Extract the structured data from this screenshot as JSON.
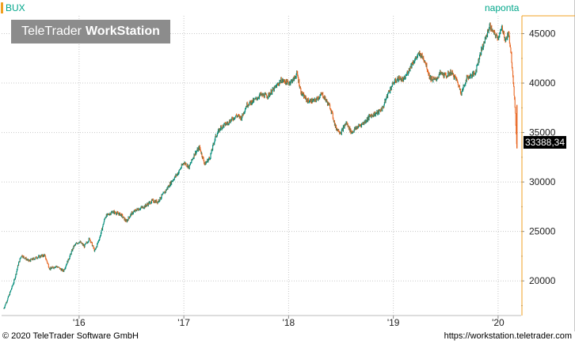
{
  "header": {
    "symbol": "BUX",
    "period": "naponta",
    "logo_part1": "TeleTrader",
    "logo_part2": "WorkStation"
  },
  "footer": {
    "copyright": "© 2020 TeleTrader Software GmbH",
    "url": "https://workstation.teletrader.com"
  },
  "colors": {
    "up": "#008c7a",
    "down": "#e8641e",
    "accent": "#f0a020",
    "grid": "#c8c8c8"
  },
  "chart_data": {
    "type": "candlestick",
    "title": "BUX",
    "interval": "naponta",
    "last_value_label": "33388,34",
    "last_value": 33388.34,
    "y_ticks": [
      20000,
      25000,
      30000,
      35000,
      40000,
      45000
    ],
    "y_tick_labels": [
      "20000",
      "25000",
      "30000",
      "35000",
      "40000",
      "45000"
    ],
    "ylim": [
      16500,
      46800
    ],
    "x_ticks": [
      2016,
      2017,
      2018,
      2019,
      2020
    ],
    "x_tick_labels": [
      "'16",
      "'17",
      "'18",
      "'19",
      "'20"
    ],
    "xlim": [
      2015.26,
      2020.22
    ],
    "grid": true,
    "series_path": [
      [
        2015.28,
        17200
      ],
      [
        2015.33,
        18500
      ],
      [
        2015.38,
        20000
      ],
      [
        2015.42,
        21700
      ],
      [
        2015.45,
        22600
      ],
      [
        2015.52,
        22000
      ],
      [
        2015.6,
        22400
      ],
      [
        2015.67,
        22600
      ],
      [
        2015.72,
        21200
      ],
      [
        2015.78,
        21500
      ],
      [
        2015.85,
        21000
      ],
      [
        2015.9,
        22200
      ],
      [
        2015.95,
        23500
      ],
      [
        2016.0,
        24000
      ],
      [
        2016.05,
        23500
      ],
      [
        2016.1,
        24300
      ],
      [
        2016.15,
        23000
      ],
      [
        2016.2,
        24500
      ],
      [
        2016.25,
        26500
      ],
      [
        2016.32,
        27000
      ],
      [
        2016.4,
        26700
      ],
      [
        2016.45,
        26000
      ],
      [
        2016.5,
        26800
      ],
      [
        2016.55,
        27200
      ],
      [
        2016.62,
        27500
      ],
      [
        2016.7,
        28100
      ],
      [
        2016.75,
        28000
      ],
      [
        2016.82,
        29000
      ],
      [
        2016.88,
        30000
      ],
      [
        2016.95,
        31000
      ],
      [
        2017.0,
        32000
      ],
      [
        2017.05,
        31500
      ],
      [
        2017.1,
        32800
      ],
      [
        2017.15,
        33500
      ],
      [
        2017.2,
        31800
      ],
      [
        2017.25,
        32500
      ],
      [
        2017.3,
        34500
      ],
      [
        2017.35,
        35500
      ],
      [
        2017.42,
        36000
      ],
      [
        2017.5,
        36700
      ],
      [
        2017.55,
        36500
      ],
      [
        2017.6,
        37800
      ],
      [
        2017.68,
        38300
      ],
      [
        2017.73,
        38800
      ],
      [
        2017.8,
        38700
      ],
      [
        2017.87,
        39500
      ],
      [
        2017.93,
        40300
      ],
      [
        2018.0,
        40000
      ],
      [
        2018.05,
        40400
      ],
      [
        2018.08,
        41000
      ],
      [
        2018.12,
        39000
      ],
      [
        2018.18,
        38200
      ],
      [
        2018.25,
        38200
      ],
      [
        2018.32,
        38900
      ],
      [
        2018.4,
        37500
      ],
      [
        2018.45,
        35500
      ],
      [
        2018.5,
        35000
      ],
      [
        2018.55,
        36000
      ],
      [
        2018.6,
        35000
      ],
      [
        2018.65,
        35500
      ],
      [
        2018.72,
        36000
      ],
      [
        2018.78,
        36700
      ],
      [
        2018.85,
        37000
      ],
      [
        2018.9,
        37500
      ],
      [
        2018.95,
        39000
      ],
      [
        2019.0,
        40000
      ],
      [
        2019.05,
        40500
      ],
      [
        2019.1,
        40300
      ],
      [
        2019.18,
        42000
      ],
      [
        2019.25,
        43000
      ],
      [
        2019.3,
        42300
      ],
      [
        2019.35,
        40500
      ],
      [
        2019.4,
        40300
      ],
      [
        2019.45,
        41000
      ],
      [
        2019.5,
        40700
      ],
      [
        2019.55,
        41100
      ],
      [
        2019.6,
        40400
      ],
      [
        2019.65,
        39000
      ],
      [
        2019.7,
        40500
      ],
      [
        2019.78,
        41000
      ],
      [
        2019.83,
        43000
      ],
      [
        2019.88,
        44500
      ],
      [
        2019.92,
        45800
      ],
      [
        2019.96,
        45000
      ],
      [
        2020.0,
        44600
      ],
      [
        2020.04,
        45600
      ],
      [
        2020.07,
        44300
      ],
      [
        2020.1,
        45000
      ],
      [
        2020.12,
        43500
      ],
      [
        2020.14,
        41000
      ],
      [
        2020.16,
        37800
      ],
      [
        2020.18,
        33388.34
      ]
    ]
  }
}
